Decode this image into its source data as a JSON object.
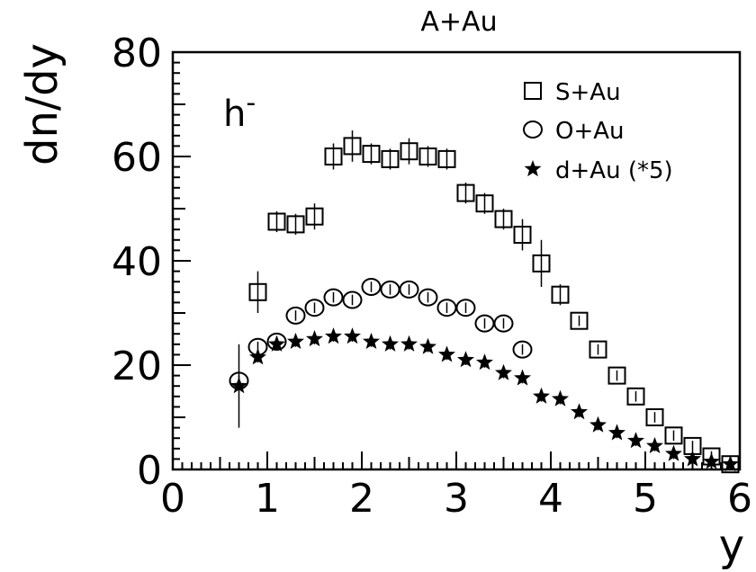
{
  "chart_data": {
    "type": "scatter",
    "title": "A+Au",
    "xlabel": "y",
    "ylabel": "dn/dy",
    "panel_label": "h",
    "panel_label_superscript": "-",
    "xlim": [
      0,
      6
    ],
    "ylim": [
      0,
      80
    ],
    "x_ticks": [
      0,
      1,
      2,
      3,
      4,
      5,
      6
    ],
    "y_ticks": [
      0,
      20,
      40,
      60,
      80
    ],
    "x_tick_labels": [
      "0",
      "1",
      "2",
      "3",
      "4",
      "5",
      "6"
    ],
    "y_tick_labels": [
      "0",
      "20",
      "40",
      "60",
      "80"
    ],
    "grid": false,
    "legend_position": "top-right",
    "series": [
      {
        "name": "S+Au",
        "marker": "open-square",
        "x": [
          0.9,
          1.1,
          1.3,
          1.5,
          1.7,
          1.9,
          2.1,
          2.3,
          2.5,
          2.7,
          2.9,
          3.1,
          3.3,
          3.5,
          3.7,
          3.9,
          4.1,
          4.3,
          4.5,
          4.7,
          4.9,
          5.1,
          5.3,
          5.5,
          5.7,
          5.9
        ],
        "y": [
          34,
          47.5,
          47,
          48.5,
          60,
          62,
          60.5,
          59.5,
          61,
          60,
          59.5,
          53,
          51,
          48,
          45,
          39.5,
          33.5,
          28.5,
          23,
          18,
          14,
          10,
          6.5,
          4.5,
          2.5,
          1
        ],
        "err": [
          4,
          2,
          2,
          2.5,
          2.5,
          3,
          2,
          2,
          2.5,
          2,
          2,
          2,
          2,
          2,
          3,
          4.5,
          2,
          1,
          1,
          1,
          1,
          1,
          1,
          1,
          1,
          1
        ]
      },
      {
        "name": "O+Au",
        "marker": "open-circle",
        "x": [
          0.7,
          0.9,
          1.1,
          1.3,
          1.5,
          1.7,
          1.9,
          2.1,
          2.3,
          2.5,
          2.7,
          2.9,
          3.1,
          3.3,
          3.5,
          3.7
        ],
        "y": [
          17,
          23.5,
          24.5,
          29.5,
          31,
          33,
          32.5,
          35,
          34.5,
          34.5,
          33,
          31,
          31,
          28,
          28,
          23
        ],
        "err": [
          1,
          1,
          1,
          1,
          1,
          1,
          1,
          1,
          1,
          1,
          1,
          1,
          1,
          1,
          1,
          1
        ]
      },
      {
        "name": "d+Au (*5)",
        "marker": "filled-star",
        "x": [
          0.7,
          0.9,
          1.1,
          1.3,
          1.5,
          1.7,
          1.9,
          2.1,
          2.3,
          2.5,
          2.7,
          2.9,
          3.1,
          3.3,
          3.5,
          3.7,
          3.9,
          4.1,
          4.3,
          4.5,
          4.7,
          4.9,
          5.1,
          5.3,
          5.5,
          5.7,
          5.9
        ],
        "y": [
          16,
          21.5,
          24,
          24.5,
          25,
          25.5,
          25.5,
          24.5,
          24,
          24,
          23.5,
          22,
          21,
          20.5,
          18.5,
          17.5,
          14,
          13.5,
          11,
          8.5,
          7,
          5.5,
          4.5,
          3,
          2,
          1.5,
          1
        ],
        "err": [
          8,
          1,
          1,
          1,
          1,
          1,
          1,
          1,
          1,
          1,
          1,
          1,
          1,
          1,
          1,
          1,
          1,
          1,
          1,
          1,
          1,
          1,
          1,
          1,
          1,
          1,
          1
        ]
      }
    ]
  }
}
